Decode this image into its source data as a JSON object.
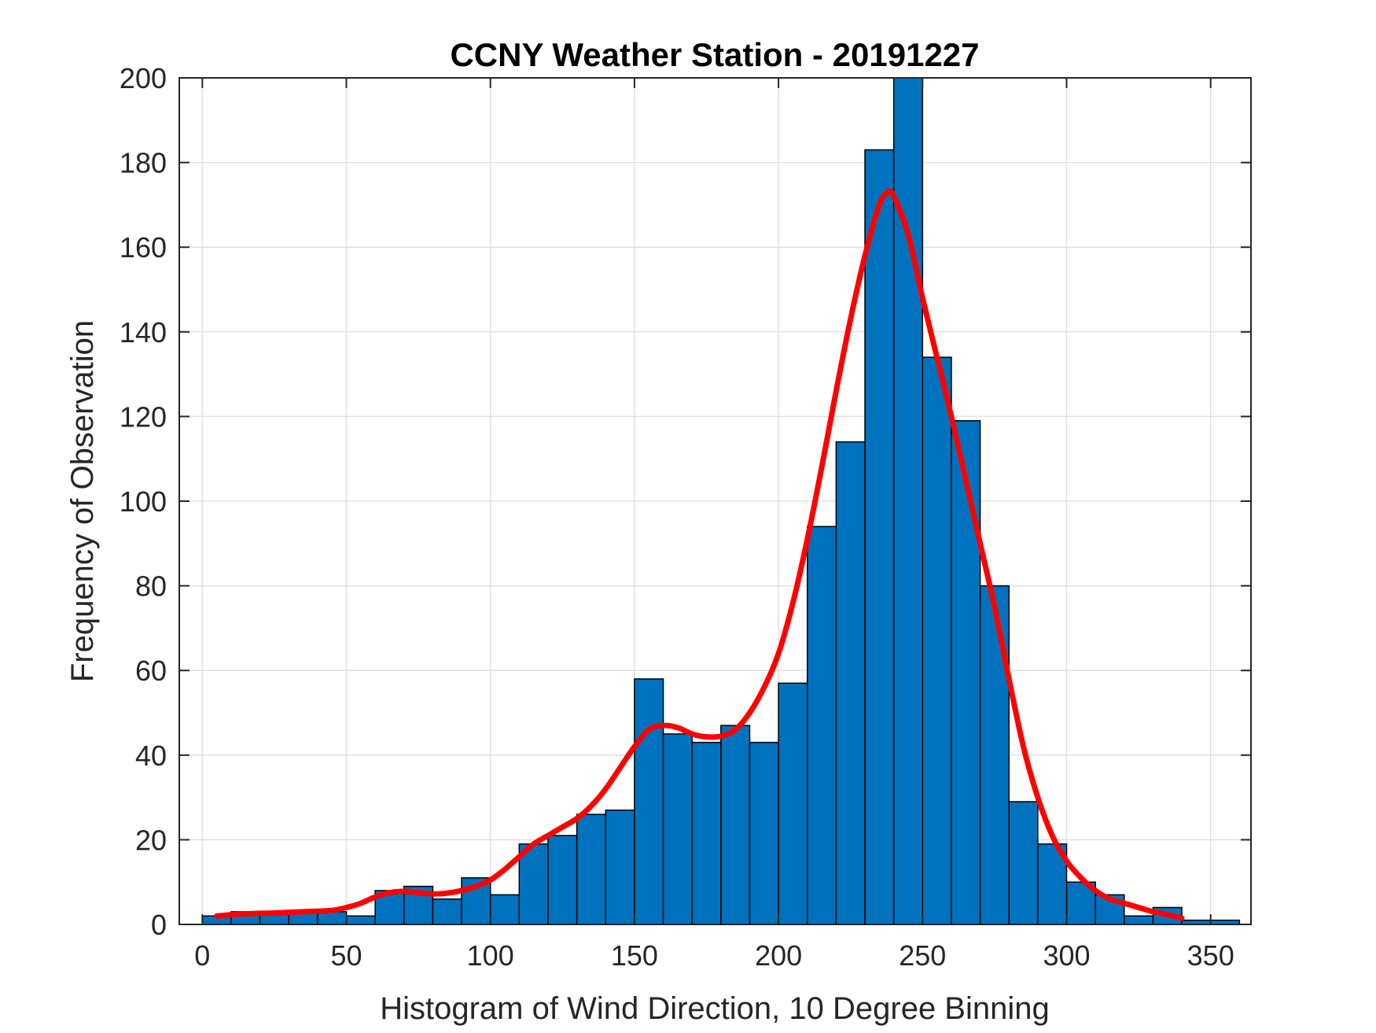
{
  "chart_data": {
    "type": "bar",
    "title": "CCNY Weather Station - 20191227",
    "xlabel": "Histogram of Wind Direction, 10 Degree Binning",
    "ylabel": "Frequency of Observation",
    "xlim": [
      -8,
      364
    ],
    "ylim": [
      0,
      200
    ],
    "xticks": [
      0,
      50,
      100,
      150,
      200,
      250,
      300,
      350
    ],
    "yticks": [
      0,
      20,
      40,
      60,
      80,
      100,
      120,
      140,
      160,
      180,
      200
    ],
    "grid": true,
    "bin_width": 10,
    "bins": [
      {
        "start": 0,
        "value": 2
      },
      {
        "start": 10,
        "value": 3
      },
      {
        "start": 20,
        "value": 3
      },
      {
        "start": 30,
        "value": 3
      },
      {
        "start": 40,
        "value": 3
      },
      {
        "start": 50,
        "value": 2
      },
      {
        "start": 60,
        "value": 8
      },
      {
        "start": 70,
        "value": 9
      },
      {
        "start": 80,
        "value": 6
      },
      {
        "start": 90,
        "value": 11
      },
      {
        "start": 100,
        "value": 7
      },
      {
        "start": 110,
        "value": 19
      },
      {
        "start": 120,
        "value": 21
      },
      {
        "start": 130,
        "value": 26
      },
      {
        "start": 140,
        "value": 27
      },
      {
        "start": 150,
        "value": 58
      },
      {
        "start": 160,
        "value": 45
      },
      {
        "start": 170,
        "value": 43
      },
      {
        "start": 180,
        "value": 47
      },
      {
        "start": 190,
        "value": 43
      },
      {
        "start": 200,
        "value": 57
      },
      {
        "start": 210,
        "value": 94
      },
      {
        "start": 220,
        "value": 114
      },
      {
        "start": 230,
        "value": 183
      },
      {
        "start": 240,
        "value": 200
      },
      {
        "start": 250,
        "value": 134
      },
      {
        "start": 260,
        "value": 119
      },
      {
        "start": 270,
        "value": 80
      },
      {
        "start": 280,
        "value": 29
      },
      {
        "start": 290,
        "value": 19
      },
      {
        "start": 300,
        "value": 10
      },
      {
        "start": 310,
        "value": 7
      },
      {
        "start": 320,
        "value": 2
      },
      {
        "start": 330,
        "value": 4
      },
      {
        "start": 340,
        "value": 1
      },
      {
        "start": 350,
        "value": 1
      }
    ],
    "fit_curve": {
      "points": [
        [
          5,
          2
        ],
        [
          15,
          2.5
        ],
        [
          25,
          2.7
        ],
        [
          35,
          3
        ],
        [
          45,
          3.3
        ],
        [
          50,
          4
        ],
        [
          55,
          5
        ],
        [
          60,
          6.5
        ],
        [
          65,
          7.5
        ],
        [
          70,
          7.8
        ],
        [
          75,
          7.5
        ],
        [
          80,
          7.2
        ],
        [
          85,
          7.4
        ],
        [
          90,
          8
        ],
        [
          95,
          9
        ],
        [
          100,
          10.5
        ],
        [
          105,
          13
        ],
        [
          110,
          16
        ],
        [
          115,
          19
        ],
        [
          120,
          21
        ],
        [
          125,
          23
        ],
        [
          130,
          25
        ],
        [
          135,
          28
        ],
        [
          140,
          32
        ],
        [
          145,
          37
        ],
        [
          150,
          42
        ],
        [
          155,
          46
        ],
        [
          160,
          47
        ],
        [
          165,
          46.5
        ],
        [
          170,
          45
        ],
        [
          175,
          44.3
        ],
        [
          180,
          44.5
        ],
        [
          185,
          46
        ],
        [
          190,
          50
        ],
        [
          195,
          56
        ],
        [
          200,
          64
        ],
        [
          205,
          76
        ],
        [
          210,
          91
        ],
        [
          215,
          108
        ],
        [
          220,
          126
        ],
        [
          225,
          143
        ],
        [
          230,
          158
        ],
        [
          235,
          170
        ],
        [
          238,
          173
        ],
        [
          240,
          172
        ],
        [
          245,
          163
        ],
        [
          250,
          148
        ],
        [
          255,
          134
        ],
        [
          260,
          120
        ],
        [
          265,
          105
        ],
        [
          270,
          90
        ],
        [
          275,
          75
        ],
        [
          280,
          58
        ],
        [
          285,
          42
        ],
        [
          290,
          30
        ],
        [
          295,
          21
        ],
        [
          300,
          15
        ],
        [
          305,
          11
        ],
        [
          310,
          8
        ],
        [
          315,
          6
        ],
        [
          320,
          5
        ],
        [
          325,
          4
        ],
        [
          330,
          3
        ],
        [
          335,
          2.3
        ],
        [
          340,
          1.5
        ]
      ],
      "color": "#ff0000"
    },
    "colors": {
      "bar_fill": "#0072bd",
      "bar_edge": "#000000",
      "grid": "#e0e0e0",
      "axes": "#262626"
    }
  }
}
